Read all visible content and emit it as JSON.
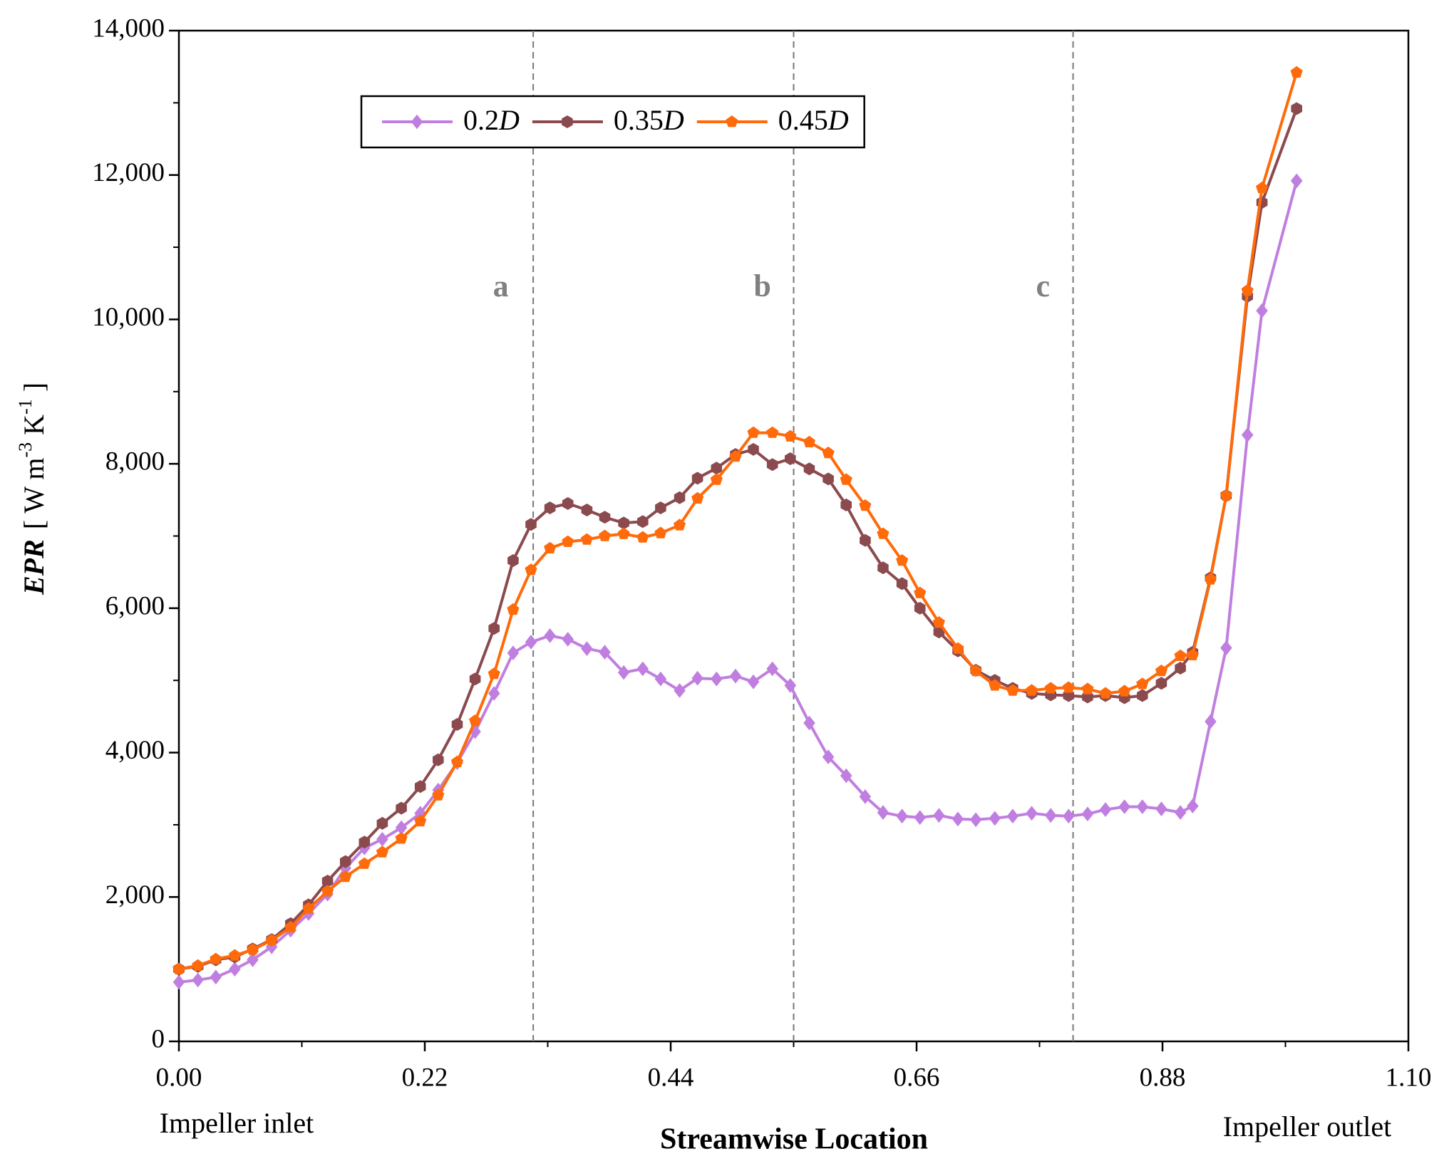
{
  "chart_data": {
    "type": "line",
    "xlabel": "Streamwise Location",
    "ylabel_parts": [
      "EPR",
      "[ W m",
      "-3",
      " K",
      "-1",
      " ]"
    ],
    "end_labels": [
      "Impeller inlet",
      "Impeller outlet"
    ],
    "x": [
      0,
      0.017,
      0.033,
      0.05,
      0.066,
      0.083,
      0.1,
      0.116,
      0.133,
      0.149,
      0.166,
      0.182,
      0.199,
      0.216,
      0.232,
      0.249,
      0.265,
      0.282,
      0.299,
      0.315,
      0.332,
      0.348,
      0.365,
      0.381,
      0.398,
      0.415,
      0.431,
      0.448,
      0.464,
      0.481,
      0.498,
      0.514,
      0.531,
      0.547,
      0.564,
      0.581,
      0.597,
      0.614,
      0.63,
      0.647,
      0.663,
      0.68,
      0.697,
      0.713,
      0.73,
      0.746,
      0.763,
      0.78,
      0.796,
      0.813,
      0.829,
      0.846,
      0.862,
      0.879,
      0.896,
      0.907,
      0.923,
      0.937,
      0.956,
      0.969,
      1.0
    ],
    "series": [
      {
        "name": "0.2D",
        "color": "#c07fe0",
        "marker": "diamond",
        "values": [
          820,
          850,
          890,
          1000,
          1130,
          1310,
          1540,
          1770,
          2040,
          2400,
          2680,
          2800,
          2960,
          3160,
          3480,
          3860,
          4290,
          4820,
          5380,
          5530,
          5620,
          5570,
          5440,
          5390,
          5110,
          5160,
          5020,
          4860,
          5030,
          5020,
          5060,
          4980,
          5160,
          4930,
          4410,
          3940,
          3680,
          3390,
          3170,
          3120,
          3100,
          3130,
          3080,
          3070,
          3090,
          3120,
          3160,
          3130,
          3120,
          3150,
          3210,
          3250,
          3250,
          3220,
          3170,
          3260,
          4430,
          5450,
          8400,
          10120,
          11920
        ]
      },
      {
        "name": "0.35D",
        "color": "#8b4a4e",
        "marker": "hexagon",
        "values": [
          1000,
          1040,
          1130,
          1170,
          1280,
          1410,
          1630,
          1890,
          2220,
          2490,
          2760,
          3020,
          3230,
          3530,
          3900,
          4390,
          5020,
          5720,
          6660,
          7160,
          7390,
          7450,
          7360,
          7260,
          7180,
          7200,
          7390,
          7530,
          7800,
          7940,
          8130,
          8200,
          7990,
          8070,
          7930,
          7790,
          7430,
          6940,
          6560,
          6340,
          6000,
          5670,
          5410,
          5140,
          5000,
          4890,
          4820,
          4800,
          4790,
          4770,
          4790,
          4760,
          4790,
          4960,
          5170,
          5390,
          6420,
          7560,
          10320,
          11620,
          12920
        ]
      },
      {
        "name": "0.45D",
        "color": "#ff6a0a",
        "marker": "pentagon",
        "values": [
          1000,
          1050,
          1140,
          1190,
          1270,
          1400,
          1580,
          1840,
          2080,
          2280,
          2460,
          2620,
          2810,
          3050,
          3410,
          3870,
          4440,
          5090,
          5980,
          6530,
          6830,
          6920,
          6950,
          7000,
          7030,
          6980,
          7040,
          7150,
          7520,
          7780,
          8100,
          8430,
          8430,
          8380,
          8300,
          8150,
          7780,
          7420,
          7030,
          6660,
          6210,
          5800,
          5440,
          5130,
          4930,
          4860,
          4860,
          4890,
          4900,
          4880,
          4820,
          4850,
          4950,
          5130,
          5340,
          5350,
          6400,
          7560,
          10400,
          11820,
          13420
        ]
      }
    ],
    "xlim": [
      0,
      1.1
    ],
    "ylim": [
      0,
      14000
    ],
    "xticks": [
      {
        "value": 0,
        "label": "0.00"
      },
      {
        "value": 0.22,
        "label": "0.22"
      },
      {
        "value": 0.44,
        "label": "0.44"
      },
      {
        "value": 0.66,
        "label": "0.66"
      },
      {
        "value": 0.88,
        "label": "0.88"
      },
      {
        "value": 1.1,
        "label": "1.10"
      }
    ],
    "xticks_minor": [
      0.11,
      0.33,
      0.55,
      0.77,
      0.99
    ],
    "yticks": [
      0,
      {
        "value": 2000,
        "label": "2,000"
      },
      {
        "value": 4000,
        "label": "4,000"
      },
      {
        "value": 6000,
        "label": "6,000"
      },
      {
        "value": 8000,
        "label": "8,000"
      },
      {
        "value": 10000,
        "label": "10,000"
      },
      {
        "value": 12000,
        "label": "12,000"
      },
      {
        "value": 14000,
        "label": "14,000"
      }
    ],
    "yticks_minor": [
      1000,
      3000,
      5000,
      7000,
      9000,
      11000,
      13000
    ],
    "vlines": [
      0.317,
      0.55,
      0.8
    ],
    "annotations": [
      {
        "text": "a",
        "x": 0.288,
        "y": 10420
      },
      {
        "text": "b",
        "x": 0.522,
        "y": 10420
      },
      {
        "text": "c",
        "x": 0.773,
        "y": 10420
      }
    ],
    "grid": false,
    "legend": "top"
  }
}
